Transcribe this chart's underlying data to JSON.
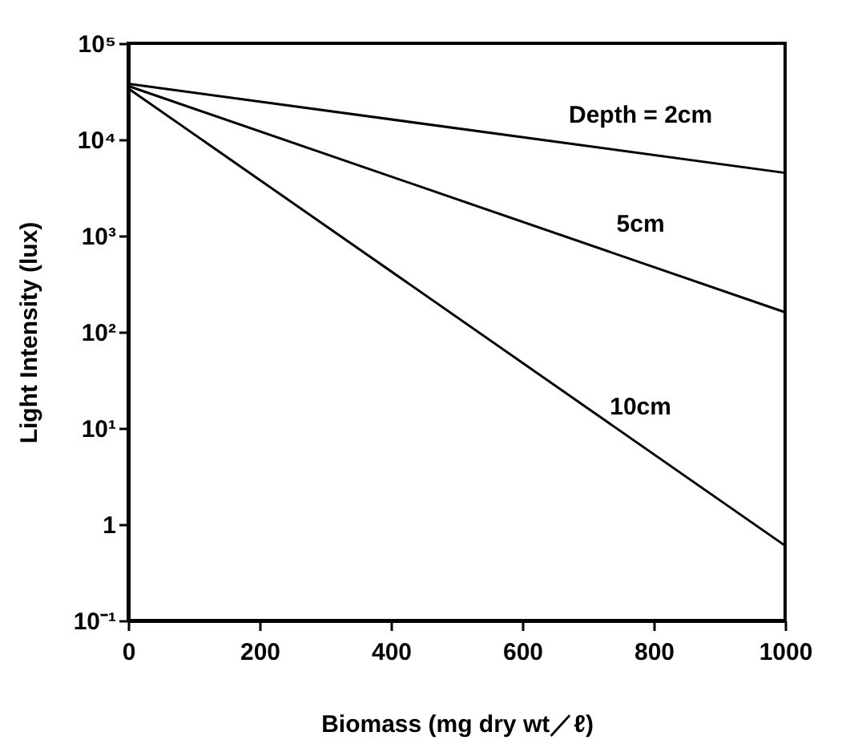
{
  "chart_data": {
    "type": "line",
    "xlabel": "Biomass (mg dry wt／ℓ)",
    "ylabel": "Light Intensity (lux)",
    "x": [
      0,
      1000
    ],
    "series": [
      {
        "name": "Depth = 2cm",
        "color": "#000000",
        "values": [
          38000,
          4500
        ]
      },
      {
        "name": "5cm",
        "color": "#000000",
        "values": [
          36000,
          160
        ]
      },
      {
        "name": "10cm",
        "color": "#000000",
        "values": [
          34000,
          0.6
        ]
      }
    ],
    "log": "y",
    "xlim": [
      0,
      1000
    ],
    "xticks": [
      0,
      200,
      400,
      600,
      800,
      1000
    ],
    "ylim": [
      0.1,
      100000
    ],
    "yticks": [
      {
        "value": 0.1,
        "label": "10⁻¹"
      },
      1,
      {
        "value": 10,
        "label": "10¹"
      },
      {
        "value": 100,
        "label": "10²"
      },
      {
        "value": 1000,
        "label": "10³"
      },
      {
        "value": 10000,
        "label": "10⁴"
      },
      {
        "value": 100000,
        "label": "10⁵"
      }
    ],
    "grid": false,
    "legend": false,
    "marker": "none",
    "line_style": "solid"
  }
}
